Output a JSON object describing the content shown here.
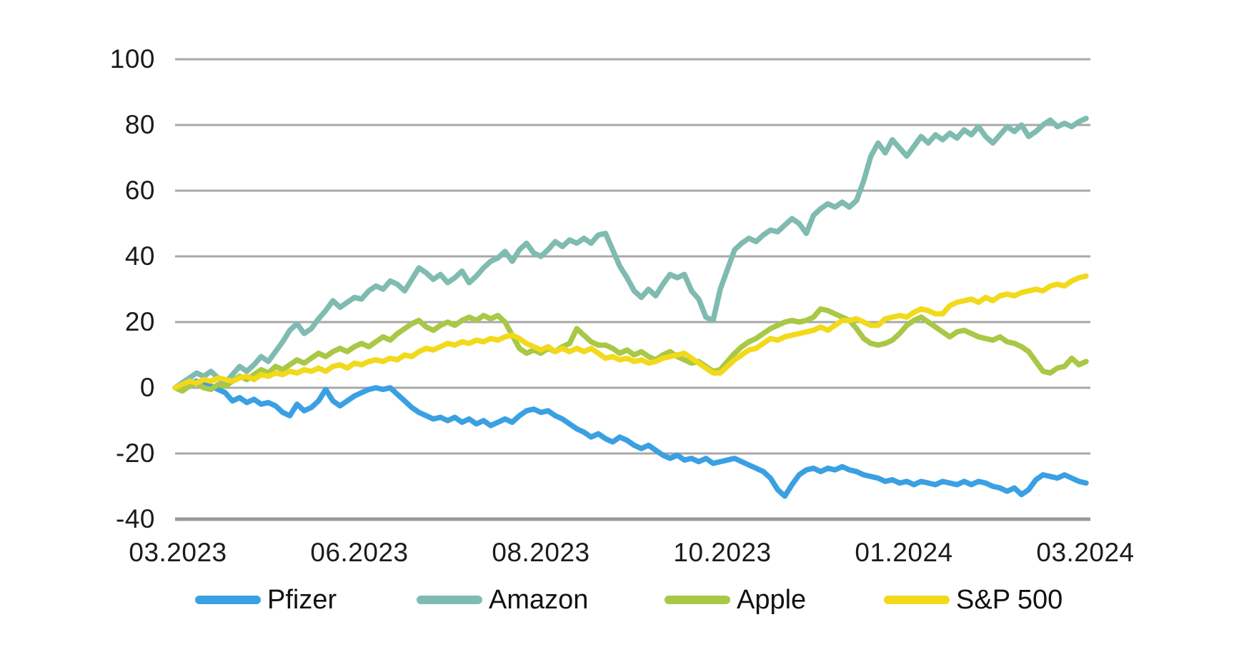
{
  "chart_data": {
    "type": "line",
    "title": "",
    "xlabel": "",
    "ylabel": "",
    "grid": true,
    "legend_position": "bottom",
    "x_axis": {
      "labels": [
        "03.2023",
        "06.2023",
        "08.2023",
        "10.2023",
        "01.2024",
        "03.2024"
      ]
    },
    "y_axis": {
      "ticks": [
        100,
        80,
        60,
        40,
        20,
        0,
        -20,
        -40
      ],
      "range": [
        -40,
        100
      ]
    },
    "series": [
      {
        "name": "Pfizer",
        "color": "#3BA0E2",
        "values": [
          0,
          0.5,
          1.5,
          2,
          1,
          0.5,
          -0.5,
          -1.5,
          -4,
          -3,
          -4.5,
          -3.5,
          -5,
          -4.5,
          -5.5,
          -7.5,
          -8.5,
          -5,
          -7,
          -6,
          -4,
          -0.5,
          -4,
          -5.5,
          -4,
          -2.5,
          -1.5,
          -0.5,
          0,
          -0.5,
          0,
          -2,
          -4,
          -6,
          -7.5,
          -8.5,
          -9.5,
          -9,
          -10,
          -9,
          -10.5,
          -9.5,
          -11,
          -10,
          -11.5,
          -10.5,
          -9.5,
          -10.5,
          -8.5,
          -7,
          -6.5,
          -7.5,
          -7,
          -8.5,
          -9.5,
          -11,
          -12.5,
          -13.5,
          -15,
          -14,
          -15.5,
          -16.5,
          -15,
          -16,
          -17.5,
          -18.5,
          -17.5,
          -19,
          -20.5,
          -21.5,
          -20.5,
          -22,
          -21.5,
          -22.5,
          -21.5,
          -23,
          -22.5,
          -22,
          -21.5,
          -22.5,
          -23.5,
          -24.5,
          -25.5,
          -27.5,
          -31,
          -33,
          -29.5,
          -26.5,
          -25,
          -24.5,
          -25.5,
          -24.5,
          -25,
          -24,
          -25,
          -25.5,
          -26.5,
          -27,
          -27.5,
          -28.5,
          -28,
          -29,
          -28.5,
          -29.5,
          -28.5,
          -29,
          -29.5,
          -28.5,
          -29,
          -29.5,
          -28.5,
          -29.5,
          -28.5,
          -29,
          -30,
          -30.5,
          -31.5,
          -30.5,
          -32.5,
          -31,
          -28,
          -26.5,
          -27,
          -27.5,
          -26.5,
          -27.5,
          -28.5,
          -29
        ]
      },
      {
        "name": "Amazon",
        "color": "#7FBBB1",
        "values": [
          0,
          1.5,
          3,
          4.5,
          3.5,
          5,
          3,
          1.5,
          4,
          6.5,
          5,
          7,
          9.5,
          8,
          11,
          14,
          17.5,
          19.5,
          16.5,
          18,
          21,
          23.5,
          26.5,
          24.5,
          26,
          27.5,
          27,
          29.5,
          31,
          30,
          32.5,
          31.5,
          29.5,
          33,
          36.5,
          35,
          33,
          34.5,
          32,
          33.5,
          35.5,
          32,
          34,
          36.5,
          38.5,
          39.5,
          41.5,
          38.5,
          42,
          44,
          41,
          40,
          42,
          44.5,
          43,
          45,
          44,
          45.5,
          44,
          46.5,
          47,
          42,
          37,
          33.5,
          29.5,
          27.5,
          30,
          28,
          31.5,
          34.5,
          33.5,
          34.5,
          29.5,
          27,
          21.5,
          20.5,
          30,
          36,
          42,
          44,
          45.5,
          44.5,
          46.5,
          48,
          47.5,
          49.5,
          51.5,
          50,
          47,
          52.5,
          54.5,
          56,
          55,
          56.5,
          55,
          57,
          63,
          70.5,
          74.5,
          71.5,
          75.5,
          73,
          70.5,
          73.5,
          76.5,
          74.5,
          77,
          75.5,
          77.5,
          76,
          78.5,
          77,
          79.5,
          76.5,
          74.5,
          77,
          79.5,
          78,
          80,
          76.5,
          78,
          80,
          81.5,
          79.5,
          80.5,
          79.5,
          81,
          82
        ]
      },
      {
        "name": "Apple",
        "color": "#A8C846",
        "values": [
          0,
          -1,
          0.5,
          1.5,
          0,
          -0.5,
          1,
          0.5,
          2,
          3.5,
          2.5,
          4,
          5.5,
          4.5,
          6.5,
          5.5,
          7,
          8.5,
          7.5,
          9,
          10.5,
          9.5,
          11,
          12,
          11,
          12.5,
          13.5,
          12.5,
          14,
          15.5,
          14.5,
          16.5,
          18,
          19.5,
          20.5,
          18.5,
          17.5,
          19,
          20,
          19,
          20.5,
          21.5,
          20.5,
          22,
          21,
          22,
          20,
          16,
          12,
          10.5,
          11.5,
          10.5,
          12,
          11,
          12.5,
          13.5,
          18,
          16,
          14,
          13,
          13,
          12,
          10.5,
          11.5,
          10,
          11,
          9.5,
          8.5,
          10,
          11,
          9.5,
          8.5,
          7.5,
          8,
          6.5,
          5,
          5.5,
          8,
          10.5,
          12.5,
          14,
          15,
          16.5,
          18,
          19,
          20,
          20.5,
          20,
          20.5,
          21.5,
          24,
          23.5,
          22.5,
          21.5,
          20.5,
          18,
          15,
          13.5,
          13,
          13.5,
          14.5,
          16.5,
          19,
          20.5,
          21.5,
          20,
          18.5,
          17,
          15.5,
          17,
          17.5,
          16.5,
          15.5,
          15,
          14.5,
          15.5,
          14,
          13.5,
          12.5,
          11,
          8,
          5,
          4.5,
          6,
          6.5,
          9,
          7,
          8
        ]
      },
      {
        "name": "S&P 500",
        "color": "#F2D91B",
        "values": [
          0,
          1,
          2,
          1.5,
          2.5,
          2,
          3,
          2.5,
          2,
          3,
          3.5,
          2.5,
          4,
          3.5,
          4.5,
          4,
          5,
          4.5,
          5.5,
          5,
          6,
          5,
          6.5,
          7,
          6,
          7.5,
          7,
          8,
          8.5,
          8,
          9,
          8.5,
          10,
          9.5,
          11,
          12,
          11.5,
          12.5,
          13.5,
          13,
          14,
          13.5,
          14.5,
          14,
          15,
          14.5,
          15.5,
          16,
          15,
          13.5,
          12.5,
          11.5,
          12.5,
          11,
          12,
          11,
          12,
          11,
          12,
          10.5,
          9,
          9.5,
          8.5,
          9,
          8,
          8.5,
          7.5,
          8,
          9,
          9.5,
          10,
          10.5,
          9,
          7.5,
          6,
          4.5,
          4.5,
          6.5,
          8.5,
          10,
          11.5,
          12,
          13.5,
          15,
          14.5,
          15.5,
          16,
          16.5,
          17,
          17.5,
          18.5,
          17.5,
          19,
          20.5,
          20.5,
          21,
          20,
          19,
          19,
          21,
          21.5,
          22,
          21.5,
          23,
          24,
          23.5,
          22.5,
          22.5,
          25,
          26,
          26.5,
          27,
          26,
          27.5,
          26.5,
          28,
          28.5,
          28,
          29,
          29.5,
          30,
          29.5,
          31,
          31.5,
          31,
          32.5,
          33.5,
          34
        ]
      }
    ]
  },
  "colors": {
    "background": "#ffffff",
    "gridline": "#a8a8a8",
    "axis_line": "#9a9a9a",
    "text": "#1b1b1b"
  }
}
